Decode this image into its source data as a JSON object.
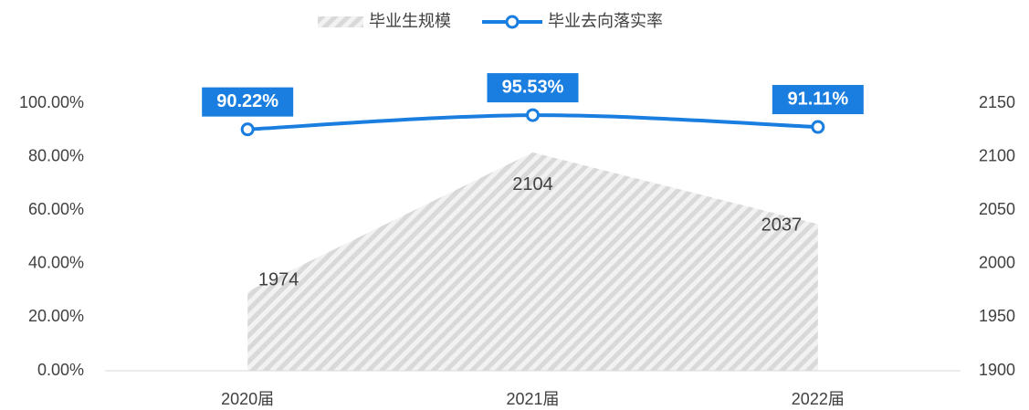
{
  "chart_data": {
    "type": "combo",
    "categories": [
      "2020届",
      "2021届",
      "2022届"
    ],
    "series": [
      {
        "name": "毕业生规模",
        "type": "area",
        "axis": "y2",
        "color": "#d9d9d9",
        "values": [
          1974,
          2104,
          2037
        ]
      },
      {
        "name": "毕业去向落实率",
        "type": "line",
        "color": "#1a7ee0",
        "values": [
          90.22,
          95.53,
          91.11
        ],
        "value_labels": [
          "90.22%",
          "95.53%",
          "91.11%"
        ]
      }
    ],
    "ylim": [
      0,
      100
    ],
    "yticks": [
      {
        "value": 0,
        "label": "0.00%"
      },
      {
        "value": 20,
        "label": "20.00%"
      },
      {
        "value": 40,
        "label": "40.00%"
      },
      {
        "value": 60,
        "label": "60.00%"
      },
      {
        "value": 80,
        "label": "80.00%"
      },
      {
        "value": 100,
        "label": "100.00%"
      }
    ],
    "y2lim": [
      1900,
      2150
    ],
    "y2ticks": [
      1900,
      1950,
      2000,
      2050,
      2100,
      2150
    ],
    "legend": "top"
  }
}
